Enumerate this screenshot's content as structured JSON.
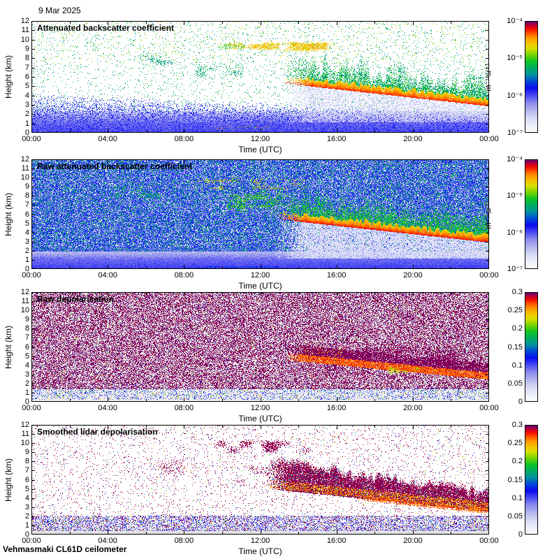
{
  "page": {
    "date_label": "9 Mar 2025",
    "footer": "Vehmasmaki CL61D ceilometer"
  },
  "chart_data": {
    "type": "heatmap",
    "title": "9 Mar 2025",
    "footer": "Vehmasmaki CL61D ceilometer",
    "x": {
      "label": "Time (UTC)",
      "ticks": [
        "00:00",
        "04:00",
        "08:00",
        "12:00",
        "16:00",
        "20:00",
        "00:00"
      ],
      "range_hours": [
        0,
        24
      ]
    },
    "y": {
      "label": "Height (km)",
      "ticks": [
        "12",
        "11",
        "10",
        "9",
        "8",
        "7",
        "6",
        "5",
        "4",
        "3",
        "2",
        "1",
        "0"
      ],
      "range_km": [
        0,
        12
      ]
    },
    "colormap_stops": [
      [
        0.0,
        "#ffffff"
      ],
      [
        0.05,
        "#f0f1fa"
      ],
      [
        0.12,
        "#dcdef6"
      ],
      [
        0.2,
        "#b4b6ee"
      ],
      [
        0.28,
        "#8282ee"
      ],
      [
        0.34,
        "#4444f4"
      ],
      [
        0.4,
        "#0b0bf0"
      ],
      [
        0.46,
        "#0048d8"
      ],
      [
        0.52,
        "#00929e"
      ],
      [
        0.58,
        "#00ab62"
      ],
      [
        0.64,
        "#0fc523"
      ],
      [
        0.7,
        "#7ad400"
      ],
      [
        0.755,
        "#d8e000"
      ],
      [
        0.8,
        "#f4c400"
      ],
      [
        0.85,
        "#ff9500"
      ],
      [
        0.89,
        "#ff5500"
      ],
      [
        0.925,
        "#f31300"
      ],
      [
        0.955,
        "#cf0023"
      ],
      [
        0.975,
        "#8e0058"
      ],
      [
        1.0,
        "#670068"
      ]
    ],
    "panels": [
      {
        "title": "Attenuated backscatter coefficient",
        "colorbar": {
          "scale": "log",
          "ticks": [
            "10⁻⁴",
            "10⁻⁵",
            "10⁻⁶",
            "10⁻⁷"
          ],
          "unit": "m⁻¹ sr⁻¹",
          "range": [
            "1e-7",
            "1e-4"
          ]
        },
        "bg": "#ffffff",
        "layers": [
          {
            "type": "vband",
            "h": [
              0,
              1.0
            ],
            "v": [
              0.34,
              0.3
            ],
            "noise": 0.03
          },
          {
            "type": "vband",
            "h": [
              1.0,
              2.35
            ],
            "v": [
              0.3,
              0.1
            ],
            "noise": 0.05
          },
          {
            "type": "wedge",
            "t": [
              0,
              24
            ],
            "htop": [
              4.3,
              2.2
            ],
            "density": 0.5,
            "v": [
              0.26,
              0.42
            ],
            "fade": 0.5
          },
          {
            "type": "speckle",
            "t": [
              0,
              24
            ],
            "h": [
              2.2,
              11.9
            ],
            "density": 0.04,
            "v": [
              0.5,
              0.66
            ]
          },
          {
            "type": "speckle",
            "t": [
              0,
              24
            ],
            "h": [
              7.5,
              11.9
            ],
            "density": 0.015,
            "v": [
              0.68,
              0.78
            ]
          },
          {
            "type": "speckle",
            "t": [
              9.5,
              12.5
            ],
            "h": [
              0.3,
              0.7
            ],
            "density": 0.1,
            "v": [
              0.6,
              0.9
            ]
          },
          {
            "type": "blob",
            "t": [
              5.5,
              8.5
            ],
            "h": [
              7.2,
              8.6
            ],
            "density": 0.35,
            "v": [
              0.5,
              0.62
            ],
            "scale": 2.5
          },
          {
            "type": "blob",
            "t": [
              8.5,
              11.2
            ],
            "h": [
              5.8,
              7.6
            ],
            "density": 0.3,
            "v": [
              0.5,
              0.64
            ],
            "scale": 2.5
          },
          {
            "type": "blob",
            "t": [
              9.0,
              11.5
            ],
            "h": [
              8.9,
              9.6
            ],
            "density": 0.35,
            "v": [
              0.6,
              0.72
            ],
            "scale": 2
          },
          {
            "type": "blob",
            "t": [
              10.2,
              16.2
            ],
            "h": [
              8.7,
              9.8
            ],
            "density": 0.8,
            "v": [
              0.74,
              0.85
            ],
            "scale": 3
          },
          {
            "type": "plume",
            "t": [
              13.2,
              24
            ],
            "base": [
              5.3,
              2.85
            ],
            "coreThick": 0.75,
            "coreV": [
              0.78,
              0.92
            ],
            "greenHeight": 2.8,
            "greenV": [
              0.5,
              0.68
            ],
            "greenDensity": 0.75,
            "underTo": 1.15,
            "underDensity": 0.5,
            "underV": [
              0.07,
              0.2
            ]
          }
        ]
      },
      {
        "title": "Raw attenuated backscatter coefficient",
        "colorbar": {
          "scale": "log",
          "ticks": [
            "10⁻⁴",
            "10⁻⁵",
            "10⁻⁶",
            "10⁻⁷"
          ],
          "unit": "m⁻¹ sr⁻¹",
          "range": [
            "1e-7",
            "1e-4"
          ]
        },
        "bg": "#ffffff",
        "layers": [
          {
            "type": "vband",
            "h": [
              0,
              1.1
            ],
            "v": [
              0.35,
              0.3
            ],
            "noise": 0.03
          },
          {
            "type": "vband",
            "h": [
              1.1,
              2.4
            ],
            "v": [
              0.3,
              0.12
            ],
            "noise": 0.05
          },
          {
            "type": "speckle",
            "t": [
              0,
              24
            ],
            "h": [
              1.9,
              11.9
            ],
            "density": 0.85,
            "v": [
              0.22,
              0.48
            ]
          },
          {
            "type": "speckle",
            "t": [
              0,
              24
            ],
            "h": [
              1.9,
              11.9
            ],
            "density": 0.2,
            "v": [
              0.5,
              0.64
            ]
          },
          {
            "type": "speckle",
            "t": [
              8,
              13
            ],
            "h": [
              0,
              0.3
            ],
            "density": 0.4,
            "v": [
              0.4,
              0.46
            ]
          },
          {
            "type": "blob",
            "t": [
              4,
              7
            ],
            "h": [
              7.6,
              9.2
            ],
            "density": 0.4,
            "v": [
              0.52,
              0.66
            ],
            "scale": 2.5
          },
          {
            "type": "blob",
            "t": [
              10,
              13.5
            ],
            "h": [
              6,
              8.6
            ],
            "density": 0.5,
            "v": [
              0.56,
              0.72
            ],
            "scale": 2.5
          },
          {
            "type": "blob",
            "t": [
              8.5,
              14.5
            ],
            "h": [
              8.6,
              9.9
            ],
            "density": 0.75,
            "v": [
              0.72,
              0.83
            ],
            "scale": 3
          },
          {
            "type": "plume",
            "t": [
              12.8,
              24
            ],
            "base": [
              5.45,
              2.9
            ],
            "coreThick": 0.8,
            "coreV": [
              0.78,
              0.93
            ],
            "greenHeight": 3.0,
            "greenV": [
              0.52,
              0.7
            ],
            "greenDensity": 0.85,
            "underTo": 1.15,
            "underDensity": 0.85,
            "underV": [
              0.06,
              0.18
            ]
          }
        ]
      },
      {
        "title": "Raw depolarisation",
        "colorbar": {
          "scale": "linear",
          "ticks": [
            "0.3",
            "0.25",
            "0.2",
            "0.15",
            "0.1",
            "0.05",
            "0"
          ],
          "unit": "",
          "range": [
            0,
            0.3
          ]
        },
        "bg": "#e8e8ec",
        "layers": [
          {
            "type": "fill",
            "h": [
              0,
              1.4
            ],
            "color": "#f0f0f3"
          },
          {
            "type": "speckle",
            "t": [
              0,
              24
            ],
            "h": [
              0.25,
              1.5
            ],
            "density": 0.28,
            "v": [
              0.12,
              0.5
            ]
          },
          {
            "type": "speckle",
            "t": [
              0,
              24
            ],
            "h": [
              0.25,
              1.5
            ],
            "density": 0.05,
            "v": [
              0.6,
              0.9
            ]
          },
          {
            "type": "speckle",
            "t": [
              0,
              24
            ],
            "h": [
              1.4,
              11.9
            ],
            "density": 0.5,
            "v": [
              0.968,
              1.0
            ]
          },
          {
            "type": "speckle",
            "t": [
              0,
              24
            ],
            "h": [
              1.4,
              11.9
            ],
            "density": 0.04,
            "v": [
              0.1,
              0.9
            ]
          },
          {
            "type": "blob",
            "t": [
              13.5,
              24
            ],
            "h": [
              2.5,
              6.3
            ],
            "density": 0.45,
            "v": [
              0.962,
              1.0
            ],
            "scale": 4
          },
          {
            "type": "blob",
            "t": [
              13.8,
              16.8
            ],
            "h": [
              4.6,
              6.2
            ],
            "density": 0.3,
            "v": [
              0.78,
              0.88
            ],
            "scale": 2
          },
          {
            "type": "streak",
            "t": [
              13.3,
              24
            ],
            "line": [
              4.95,
              2.8
            ],
            "half": 0.38,
            "density": 0.85,
            "v": [
              0.84,
              0.93
            ],
            "aboveH": 1.0,
            "aboveDensity": 0.7,
            "aboveV": [
              0.965,
              1.0
            ]
          },
          {
            "type": "blob",
            "t": [
              18.3,
              20.7
            ],
            "h": [
              3.0,
              3.9
            ],
            "density": 0.45,
            "v": [
              0.68,
              0.8
            ],
            "scale": 2
          }
        ]
      },
      {
        "title": "Smoothed lidar depolarisation",
        "colorbar": {
          "scale": "linear",
          "ticks": [
            "0.3",
            "0.25",
            "0.2",
            "0.15",
            "0.1",
            "0.05",
            "0"
          ],
          "unit": "",
          "range": [
            0,
            0.3
          ]
        },
        "bg": "#ffffff",
        "layers": [
          {
            "type": "fill",
            "h": [
              0,
              0.55
            ],
            "color": "#e2e2e6"
          },
          {
            "type": "speckle",
            "t": [
              0,
              24
            ],
            "h": [
              0.35,
              2.1
            ],
            "density": 0.45,
            "v": [
              0.12,
              0.42
            ]
          },
          {
            "type": "speckle",
            "t": [
              0,
              24
            ],
            "h": [
              0.35,
              2.1
            ],
            "density": 0.07,
            "v": [
              0.5,
              0.9
            ]
          },
          {
            "type": "speckle",
            "t": [
              0,
              24
            ],
            "h": [
              0.35,
              2.1
            ],
            "density": 0.1,
            "v": [
              0.96,
              1.0
            ]
          },
          {
            "type": "speckle",
            "t": [
              0,
              24
            ],
            "h": [
              1.8,
              11.9
            ],
            "density": 0.04,
            "v": [
              0.96,
              1.0
            ]
          },
          {
            "type": "speckle",
            "t": [
              0,
              24
            ],
            "h": [
              1.8,
              11.9
            ],
            "density": 0.012,
            "v": [
              0.3,
              0.9
            ]
          },
          {
            "type": "speckle",
            "t": [
              0,
              24
            ],
            "h": [
              1.8,
              11.9
            ],
            "density": 0.04,
            "v": [
              0.02,
              0.06
            ]
          },
          {
            "type": "blob",
            "t": [
              6.3,
              9.2
            ],
            "h": [
              6.3,
              8.4
            ],
            "density": 0.2,
            "v": [
              0.955,
              1.0
            ],
            "scale": 2.5
          },
          {
            "type": "blob",
            "t": [
              10.5,
              13.2
            ],
            "h": [
              5.3,
              7.8
            ],
            "density": 0.25,
            "v": [
              0.955,
              1.0
            ],
            "scale": 2.5
          },
          {
            "type": "blob",
            "t": [
              9.4,
              14.9
            ],
            "h": [
              8.8,
              10.4
            ],
            "density": 0.7,
            "v": [
              0.955,
              1.0
            ],
            "scale": 3
          },
          {
            "type": "mass",
            "t": [
              12.3,
              24
            ],
            "top": [
              8.2,
              4.7
            ],
            "bottom": [
              5.05,
              2.55
            ],
            "density": 0.88,
            "v": [
              0.955,
              1.0
            ],
            "spike": 1.3,
            "streakBand": [
              0.1,
              1.05
            ],
            "streakDensity": 0.45,
            "streakV": [
              0.78,
              0.9
            ],
            "greenDensity": 0.05,
            "greenV": [
              0.45,
              0.65
            ]
          },
          {
            "type": "streak",
            "t": [
              17,
              24
            ],
            "line": [
              4.05,
              2.55
            ],
            "half": 0.28,
            "density": 0.6,
            "v": [
              0.84,
              0.92
            ],
            "aboveH": 0,
            "aboveDensity": 0,
            "aboveV": [
              0,
              0
            ]
          }
        ]
      }
    ]
  }
}
